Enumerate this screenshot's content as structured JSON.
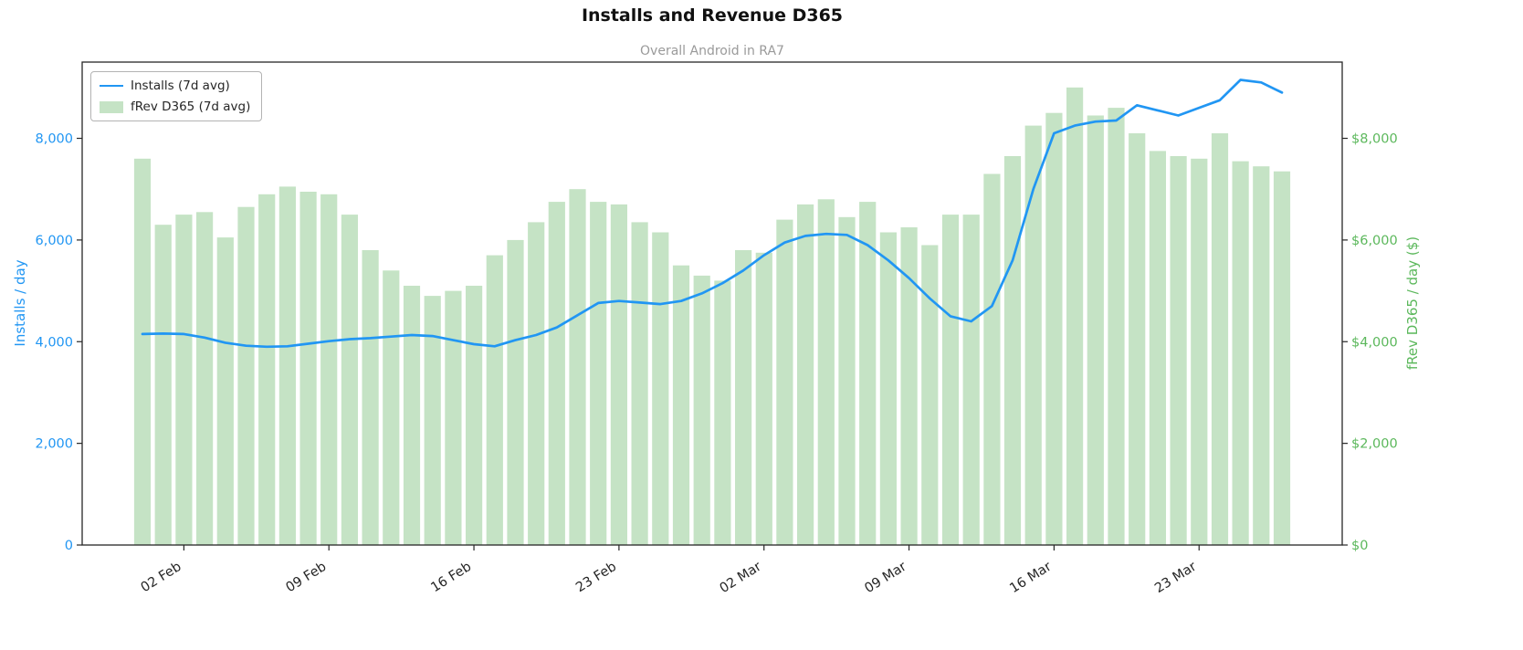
{
  "chart": {
    "title": "Installs and Revenue D365",
    "subtitle": "Overall Android in RA7",
    "ylabel_left": "Installs / day",
    "ylabel_right": "fRev D365 / day ($)",
    "legend": {
      "installs_label": "Installs (7d avg)",
      "frev_label": "fRev D365 (7d avg)"
    },
    "colors": {
      "installs_line": "#2196f3",
      "frev_bar": "#c5e3c5",
      "left_axis_text": "#2196f3",
      "right_axis_text": "#5cb85c",
      "x_axis_text": "#262626",
      "spine": "#262626",
      "subtitle_text": "#9a9a9a"
    }
  },
  "chart_data": {
    "type": "bar",
    "title": "Installs and Revenue D365",
    "subtitle": "Overall Android in RA7",
    "x": [
      "31 Jan",
      "01 Feb",
      "02 Feb",
      "03 Feb",
      "04 Feb",
      "05 Feb",
      "06 Feb",
      "07 Feb",
      "08 Feb",
      "09 Feb",
      "10 Feb",
      "11 Feb",
      "12 Feb",
      "13 Feb",
      "14 Feb",
      "15 Feb",
      "16 Feb",
      "17 Feb",
      "18 Feb",
      "19 Feb",
      "20 Feb",
      "21 Feb",
      "22 Feb",
      "23 Feb",
      "24 Feb",
      "25 Feb",
      "26 Feb",
      "27 Feb",
      "28 Feb",
      "01 Mar",
      "02 Mar",
      "03 Mar",
      "04 Mar",
      "05 Mar",
      "06 Mar",
      "07 Mar",
      "08 Mar",
      "09 Mar",
      "10 Mar",
      "11 Mar",
      "12 Mar",
      "13 Mar",
      "14 Mar",
      "15 Mar",
      "16 Mar",
      "17 Mar",
      "18 Mar",
      "19 Mar",
      "20 Mar",
      "21 Mar",
      "22 Mar",
      "23 Mar",
      "24 Mar",
      "25 Mar",
      "26 Mar",
      "27 Mar"
    ],
    "series": [
      {
        "name": "Installs (7d avg)",
        "type": "line",
        "axis": "left",
        "color": "#2196f3",
        "values": [
          4150,
          4160,
          4150,
          4080,
          3980,
          3920,
          3900,
          3910,
          3960,
          4010,
          4050,
          4070,
          4100,
          4130,
          4110,
          4030,
          3950,
          3910,
          4030,
          4130,
          4280,
          4520,
          4760,
          4800,
          4770,
          4740,
          4800,
          4950,
          5150,
          5400,
          5700,
          5950,
          6080,
          6120,
          6100,
          5900,
          5600,
          5250,
          4850,
          4500,
          4400,
          4700,
          5600,
          7000,
          8100,
          8250,
          8330,
          8350,
          8650,
          8550,
          8450,
          8600,
          8750,
          9150,
          9100,
          8900
        ]
      },
      {
        "name": "fRev D365 (7d avg)",
        "type": "bar",
        "axis": "right",
        "color": "#c5e3c5",
        "values": [
          7600,
          6300,
          6500,
          6550,
          6050,
          6650,
          6900,
          7050,
          6950,
          6900,
          6500,
          5800,
          5400,
          5100,
          4900,
          5000,
          5100,
          5700,
          6000,
          6350,
          6750,
          7000,
          6750,
          6700,
          6350,
          6150,
          5500,
          5300,
          5200,
          5800,
          5750,
          6400,
          6700,
          6800,
          6450,
          6750,
          6150,
          6250,
          5900,
          6500,
          6500,
          7300,
          7650,
          8250,
          8500,
          9000,
          8450,
          8600,
          8100,
          7750,
          7650,
          7600,
          8100,
          7550,
          7450,
          7350
        ]
      }
    ],
    "x_tick_indices": [
      2,
      9,
      16,
      23,
      30,
      37,
      44,
      51
    ],
    "x_tick_labels": [
      "02 Feb",
      "09 Feb",
      "16 Feb",
      "23 Feb",
      "02 Mar",
      "09 Mar",
      "16 Mar",
      "23 Mar"
    ],
    "y_left": {
      "label": "Installs / day",
      "ticks": [
        0,
        2000,
        4000,
        6000,
        8000
      ],
      "tick_labels": [
        "0",
        "2,000",
        "4,000",
        "6,000",
        "8,000"
      ],
      "max": 9500,
      "color": "#2196f3"
    },
    "y_right": {
      "label": "fRev D365 / day ($)",
      "ticks": [
        0,
        2000,
        4000,
        6000,
        8000
      ],
      "tick_labels": [
        "$0",
        "$2,000",
        "$4,000",
        "$6,000",
        "$8,000"
      ],
      "max": 9500,
      "color": "#5cb85c"
    },
    "grid": false,
    "legend_position": "upper left"
  }
}
